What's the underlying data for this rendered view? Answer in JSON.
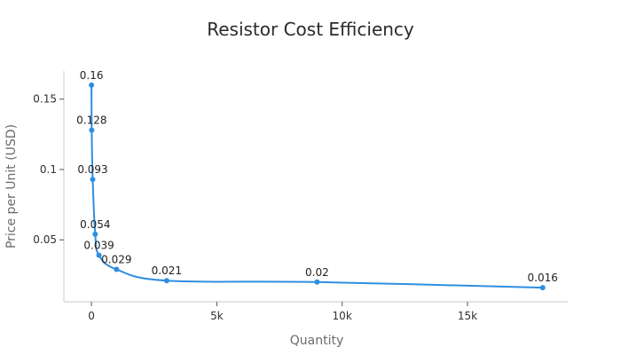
{
  "chart_data": {
    "type": "line",
    "title": "Resistor Cost Efficiency",
    "xlabel": "Quantity",
    "ylabel": "Price per Unit (USD)",
    "xlim": [
      -1100,
      19000
    ],
    "ylim": [
      0.006,
      0.17
    ],
    "x_ticks": [
      0,
      5000,
      10000,
      15000
    ],
    "x_tick_labels": [
      "0",
      "5k",
      "10k",
      "15k"
    ],
    "y_ticks": [
      0.05,
      0.1,
      0.15
    ],
    "y_tick_labels": [
      "0.05",
      "0.1",
      "0.15"
    ],
    "legend": "none",
    "grid": false,
    "series": [
      {
        "color": "#2f8ee0",
        "points": [
          {
            "x": 1,
            "y": 0.16,
            "label": "0.16"
          },
          {
            "x": 10,
            "y": 0.128,
            "label": "0.128"
          },
          {
            "x": 50,
            "y": 0.093,
            "label": "0.093"
          },
          {
            "x": 150,
            "y": 0.054,
            "label": "0.054"
          },
          {
            "x": 300,
            "y": 0.039,
            "label": "0.039"
          },
          {
            "x": 1000,
            "y": 0.029,
            "label": "0.029"
          },
          {
            "x": 3000,
            "y": 0.021,
            "label": "0.021"
          },
          {
            "x": 9000,
            "y": 0.02,
            "label": "0.02"
          },
          {
            "x": 18000,
            "y": 0.016,
            "label": "0.016"
          }
        ]
      }
    ]
  }
}
